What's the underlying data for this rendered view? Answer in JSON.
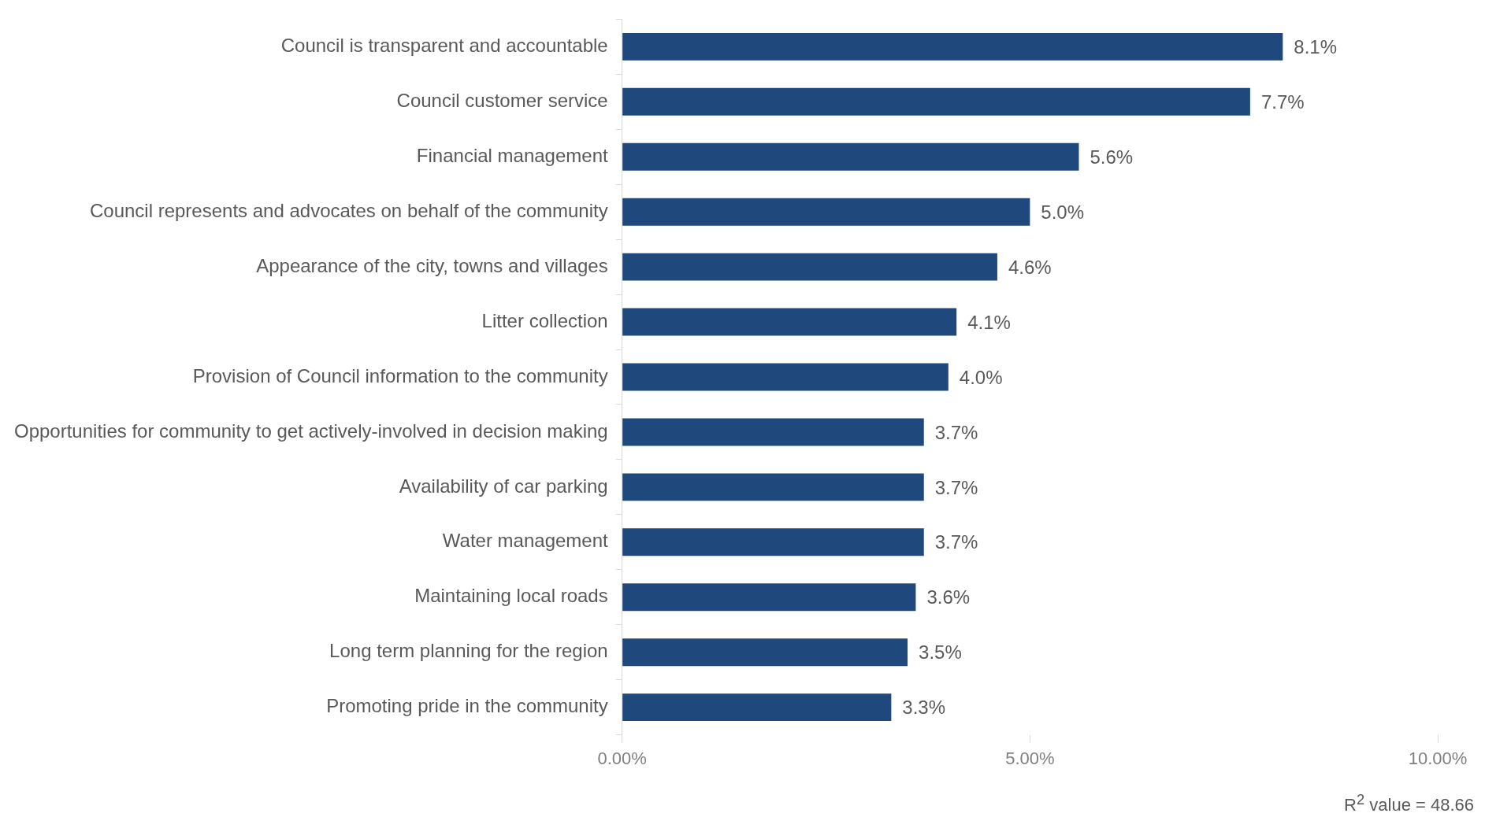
{
  "chart_data": {
    "type": "bar",
    "orientation": "horizontal",
    "categories": [
      "Council is transparent and accountable",
      "Council customer service",
      "Financial management",
      "Council represents and advocates on behalf of the community",
      "Appearance of the city, towns and villages",
      "Litter collection",
      "Provision of Council information to the community",
      "Opportunities for community to get actively-involved in decision making",
      "Availability of car parking",
      "Water management",
      "Maintaining local roads",
      "Long term planning for the region",
      "Promoting pride in the community"
    ],
    "values": [
      8.1,
      7.7,
      5.6,
      5.0,
      4.6,
      4.1,
      4.0,
      3.7,
      3.7,
      3.7,
      3.6,
      3.5,
      3.3
    ],
    "value_labels": [
      "8.1%",
      "7.7%",
      "5.6%",
      "5.0%",
      "4.6%",
      "4.1%",
      "4.0%",
      "3.7%",
      "3.7%",
      "3.7%",
      "3.6%",
      "3.5%",
      "3.3%"
    ],
    "color": "#1f497d",
    "xlim": [
      0,
      10
    ],
    "xticks": [
      {
        "value": 0,
        "label": "0.00%"
      },
      {
        "value": 5,
        "label": "5.00%"
      },
      {
        "value": 10,
        "label": "10.00%"
      }
    ],
    "grid": false,
    "legend": false,
    "annotations": [
      "R$^{2}$ value = 48.66"
    ]
  }
}
